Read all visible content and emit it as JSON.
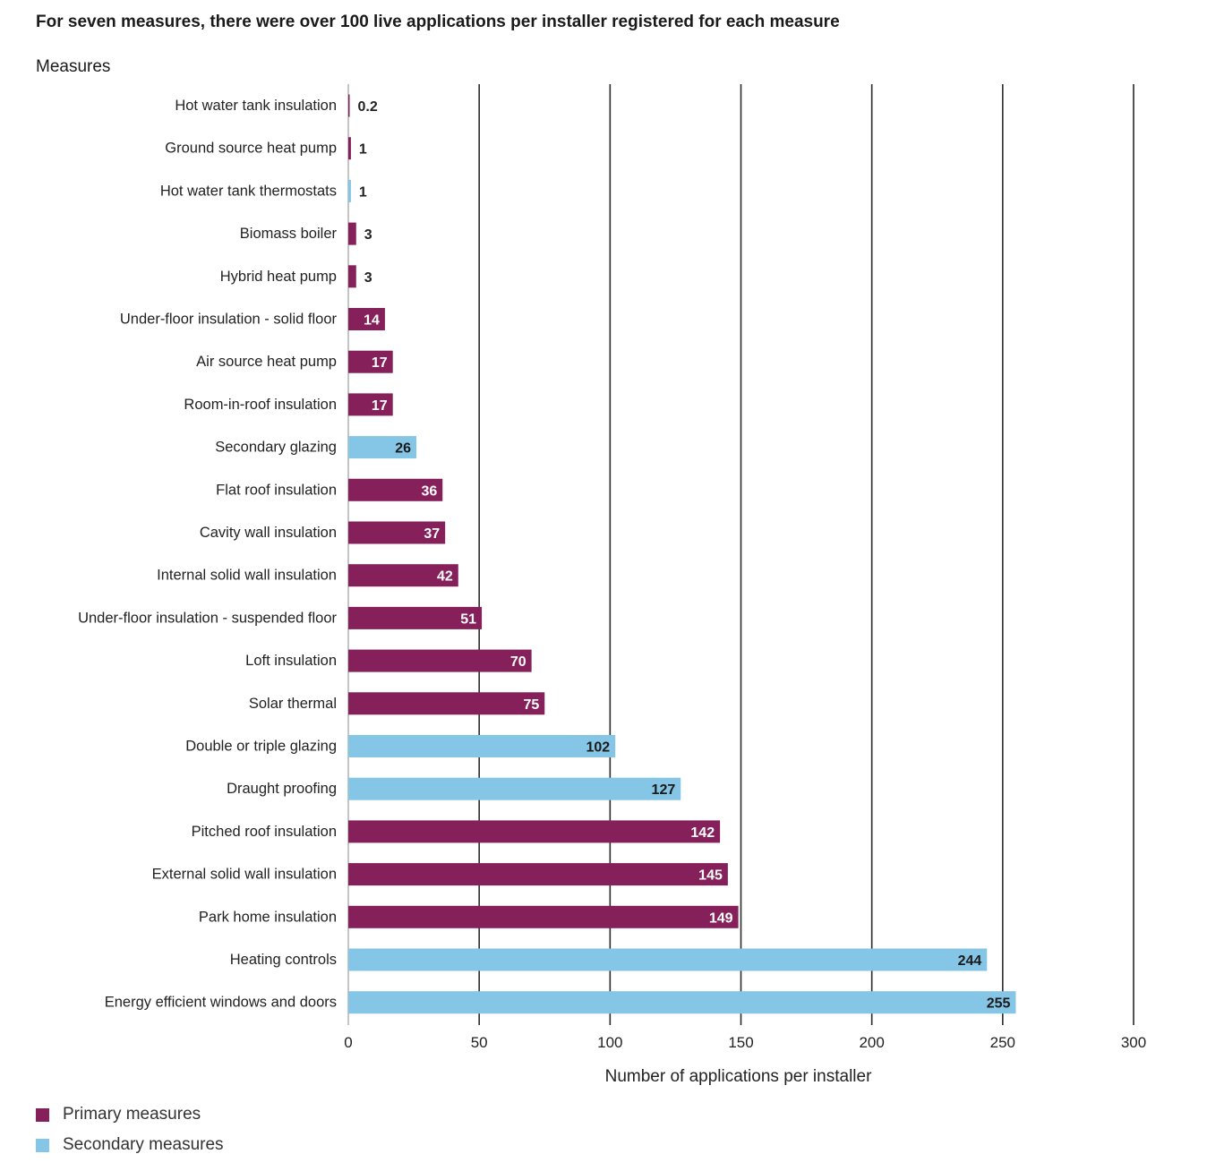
{
  "chart_data": {
    "type": "bar",
    "orientation": "horizontal",
    "title": "For seven measures, there were over 100 live applications per installer registered for each measure",
    "ylabel": "Measures",
    "xlabel": "Number of applications per installer",
    "xlim": [
      0,
      300
    ],
    "xticks": [
      0,
      50,
      100,
      150,
      200,
      250,
      300
    ],
    "grid": true,
    "legend_position": "bottom-left",
    "legend": [
      {
        "name": "Primary measures",
        "color": "#86205a"
      },
      {
        "name": "Secondary measures",
        "color": "#85c5e5"
      }
    ],
    "bars": [
      {
        "category": "Hot water tank insulation",
        "value": 0.2,
        "label": "0.2",
        "group": "Primary measures"
      },
      {
        "category": "Ground source heat pump",
        "value": 1,
        "label": "1",
        "group": "Primary measures"
      },
      {
        "category": "Hot water tank thermostats",
        "value": 1,
        "label": "1",
        "group": "Secondary measures"
      },
      {
        "category": "Biomass boiler",
        "value": 3,
        "label": "3",
        "group": "Primary measures"
      },
      {
        "category": "Hybrid heat pump",
        "value": 3,
        "label": "3",
        "group": "Primary measures"
      },
      {
        "category": "Under-floor insulation - solid floor",
        "value": 14,
        "label": "14",
        "group": "Primary measures"
      },
      {
        "category": "Air source heat pump",
        "value": 17,
        "label": "17",
        "group": "Primary measures"
      },
      {
        "category": "Room-in-roof insulation",
        "value": 17,
        "label": "17",
        "group": "Primary measures"
      },
      {
        "category": "Secondary glazing",
        "value": 26,
        "label": "26",
        "group": "Secondary measures"
      },
      {
        "category": "Flat roof insulation",
        "value": 36,
        "label": "36",
        "group": "Primary measures"
      },
      {
        "category": "Cavity wall insulation",
        "value": 37,
        "label": "37",
        "group": "Primary measures"
      },
      {
        "category": "Internal solid wall insulation",
        "value": 42,
        "label": "42",
        "group": "Primary measures"
      },
      {
        "category": "Under-floor insulation - suspended floor",
        "value": 51,
        "label": "51",
        "group": "Primary measures"
      },
      {
        "category": "Loft insulation",
        "value": 70,
        "label": "70",
        "group": "Primary measures"
      },
      {
        "category": "Solar thermal",
        "value": 75,
        "label": "75",
        "group": "Primary measures"
      },
      {
        "category": "Double or triple glazing",
        "value": 102,
        "label": "102",
        "group": "Secondary measures"
      },
      {
        "category": "Draught proofing",
        "value": 127,
        "label": "127",
        "group": "Secondary measures"
      },
      {
        "category": "Pitched roof insulation",
        "value": 142,
        "label": "142",
        "group": "Primary measures"
      },
      {
        "category": "External solid wall insulation",
        "value": 145,
        "label": "145",
        "group": "Primary measures"
      },
      {
        "category": "Park home insulation",
        "value": 149,
        "label": "149",
        "group": "Primary measures"
      },
      {
        "category": "Heating controls",
        "value": 244,
        "label": "244",
        "group": "Secondary measures"
      },
      {
        "category": "Energy efficient windows and doors",
        "value": 255,
        "label": "255",
        "group": "Secondary measures"
      }
    ]
  }
}
